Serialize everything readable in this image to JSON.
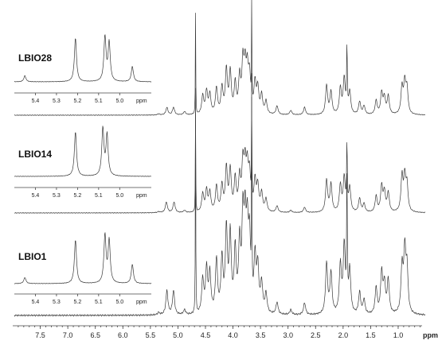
{
  "chart_data": {
    "type": "line",
    "title": "",
    "xlabel": "ppm",
    "x_reversed": true,
    "xlim": [
      8.0,
      0.45
    ],
    "x_ticks": [
      "7.5",
      "7.0",
      "6.5",
      "6.0",
      "5.5",
      "5.0",
      "4.5",
      "4.0",
      "3.5",
      "3.0",
      "2.5",
      "2.0",
      "1.5",
      "1.0"
    ],
    "x_tick_values": [
      7.5,
      7.0,
      6.5,
      6.0,
      5.5,
      5.0,
      4.5,
      4.0,
      3.5,
      3.0,
      2.5,
      2.0,
      1.5,
      1.0
    ],
    "series": [
      {
        "name": "LBIO28",
        "main_peaks": [
          [
            5.2,
            0.07
          ],
          [
            5.08,
            0.07
          ],
          [
            5.35,
            0.01
          ],
          [
            4.88,
            0.03
          ],
          [
            4.68,
            0.95
          ],
          [
            4.55,
            0.17
          ],
          [
            4.48,
            0.21
          ],
          [
            4.42,
            0.18
          ],
          [
            4.3,
            0.24
          ],
          [
            4.2,
            0.24
          ],
          [
            4.12,
            0.4
          ],
          [
            4.05,
            0.38
          ],
          [
            3.96,
            0.27
          ],
          [
            3.88,
            0.32
          ],
          [
            3.82,
            0.44
          ],
          [
            3.78,
            0.38
          ],
          [
            3.74,
            0.36
          ],
          [
            3.7,
            0.32
          ],
          [
            3.66,
            0.95
          ],
          [
            3.6,
            0.28
          ],
          [
            3.55,
            0.23
          ],
          [
            3.48,
            0.17
          ],
          [
            3.4,
            0.12
          ],
          [
            3.2,
            0.08
          ],
          [
            2.95,
            0.04
          ],
          [
            2.7,
            0.07
          ],
          [
            2.3,
            0.27
          ],
          [
            2.22,
            0.21
          ],
          [
            2.05,
            0.24
          ],
          [
            1.98,
            0.33
          ],
          [
            1.93,
            0.62
          ],
          [
            1.88,
            0.21
          ],
          [
            1.7,
            0.12
          ],
          [
            1.62,
            0.08
          ],
          [
            1.4,
            0.13
          ],
          [
            1.3,
            0.2
          ],
          [
            1.25,
            0.15
          ],
          [
            1.18,
            0.17
          ],
          [
            0.93,
            0.25
          ],
          [
            0.88,
            0.28
          ],
          [
            0.84,
            0.23
          ]
        ],
        "inset_peaks": [
          [
            5.45,
            0.12
          ],
          [
            5.21,
            0.86
          ],
          [
            5.07,
            0.88
          ],
          [
            5.05,
            0.76
          ],
          [
            4.94,
            0.3
          ]
        ]
      },
      {
        "name": "LBIO14",
        "main_peaks": [
          [
            5.21,
            0.1
          ],
          [
            5.07,
            0.1
          ],
          [
            5.35,
            0.01
          ],
          [
            4.88,
            0.02
          ],
          [
            4.68,
            0.95
          ],
          [
            4.55,
            0.17
          ],
          [
            4.48,
            0.2
          ],
          [
            4.42,
            0.18
          ],
          [
            4.3,
            0.24
          ],
          [
            4.2,
            0.24
          ],
          [
            4.12,
            0.4
          ],
          [
            4.05,
            0.38
          ],
          [
            3.96,
            0.3
          ],
          [
            3.88,
            0.3
          ],
          [
            3.82,
            0.42
          ],
          [
            3.78,
            0.38
          ],
          [
            3.74,
            0.36
          ],
          [
            3.7,
            0.32
          ],
          [
            3.66,
            0.95
          ],
          [
            3.6,
            0.28
          ],
          [
            3.55,
            0.23
          ],
          [
            3.48,
            0.17
          ],
          [
            3.4,
            0.12
          ],
          [
            3.2,
            0.06
          ],
          [
            2.95,
            0.02
          ],
          [
            2.7,
            0.05
          ],
          [
            2.3,
            0.3
          ],
          [
            2.22,
            0.26
          ],
          [
            2.05,
            0.25
          ],
          [
            1.98,
            0.32
          ],
          [
            1.93,
            0.62
          ],
          [
            1.88,
            0.23
          ],
          [
            1.7,
            0.13
          ],
          [
            1.62,
            0.08
          ],
          [
            1.4,
            0.15
          ],
          [
            1.3,
            0.24
          ],
          [
            1.25,
            0.18
          ],
          [
            1.18,
            0.18
          ],
          [
            0.93,
            0.33
          ],
          [
            0.88,
            0.31
          ],
          [
            0.84,
            0.24
          ]
        ],
        "inset_peaks": [
          [
            5.21,
            0.88
          ],
          [
            5.08,
            0.93
          ],
          [
            5.06,
            0.8
          ]
        ]
      },
      {
        "name": "LBIO1",
        "main_peaks": [
          [
            5.2,
            0.1
          ],
          [
            5.08,
            0.1
          ],
          [
            5.35,
            0.01
          ],
          [
            4.88,
            0.02
          ],
          [
            4.68,
            0.95
          ],
          [
            4.55,
            0.14
          ],
          [
            4.48,
            0.18
          ],
          [
            4.42,
            0.16
          ],
          [
            4.3,
            0.22
          ],
          [
            4.2,
            0.22
          ],
          [
            4.12,
            0.34
          ],
          [
            4.05,
            0.31
          ],
          [
            3.96,
            0.25
          ],
          [
            3.88,
            0.27
          ],
          [
            3.82,
            0.36
          ],
          [
            3.78,
            0.32
          ],
          [
            3.74,
            0.3
          ],
          [
            3.7,
            0.28
          ],
          [
            3.66,
            0.9
          ],
          [
            3.6,
            0.22
          ],
          [
            3.55,
            0.18
          ],
          [
            3.48,
            0.12
          ],
          [
            3.4,
            0.08
          ],
          [
            3.2,
            0.05
          ],
          [
            2.95,
            0.02
          ],
          [
            2.7,
            0.05
          ],
          [
            2.3,
            0.21
          ],
          [
            2.22,
            0.17
          ],
          [
            2.05,
            0.2
          ],
          [
            1.98,
            0.28
          ],
          [
            1.93,
            0.56
          ],
          [
            1.88,
            0.18
          ],
          [
            1.7,
            0.09
          ],
          [
            1.62,
            0.06
          ],
          [
            1.4,
            0.11
          ],
          [
            1.3,
            0.17
          ],
          [
            1.25,
            0.12
          ],
          [
            1.18,
            0.14
          ],
          [
            0.93,
            0.19
          ],
          [
            0.88,
            0.25
          ],
          [
            0.84,
            0.18
          ]
        ],
        "inset_peaks": [
          [
            5.45,
            0.12
          ],
          [
            5.21,
            0.86
          ],
          [
            5.07,
            0.94
          ],
          [
            5.05,
            0.84
          ],
          [
            4.94,
            0.38
          ]
        ]
      }
    ],
    "insets": {
      "xlabel": "ppm",
      "x_reversed": true,
      "xlim": [
        5.5,
        4.85
      ],
      "x_ticks": [
        "5.4",
        "5.3",
        "5.2",
        "5.1",
        "5.0"
      ],
      "x_tick_values": [
        5.4,
        5.3,
        5.2,
        5.1,
        5.0
      ]
    },
    "grid": false,
    "legend": "none"
  }
}
